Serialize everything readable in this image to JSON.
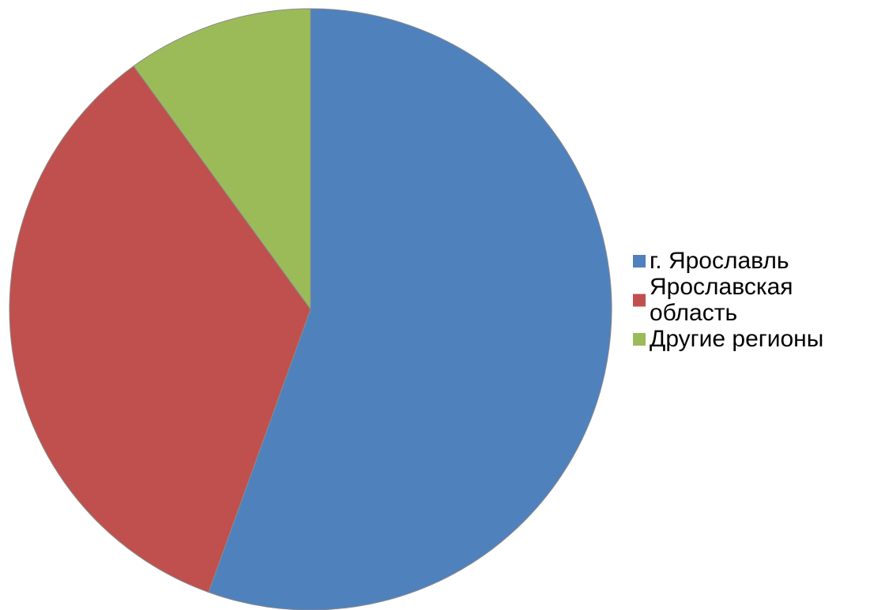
{
  "chart_data": {
    "type": "pie",
    "title": "",
    "legend_position": "right",
    "start_angle_deg": 0,
    "direction": "clockwise",
    "slices": [
      {
        "label": "г. Ярославль",
        "label_lines": [
          "г. Ярославль"
        ],
        "value": 55.5,
        "color": "#4F81BD"
      },
      {
        "label": "Ярославская область",
        "label_lines": [
          "Ярославская",
          "область"
        ],
        "value": 34.5,
        "color": "#C0504D"
      },
      {
        "label": "Другие регионы",
        "label_lines": [
          "Другие регионы"
        ],
        "value": 10.0,
        "color": "#9BBB59"
      }
    ]
  }
}
